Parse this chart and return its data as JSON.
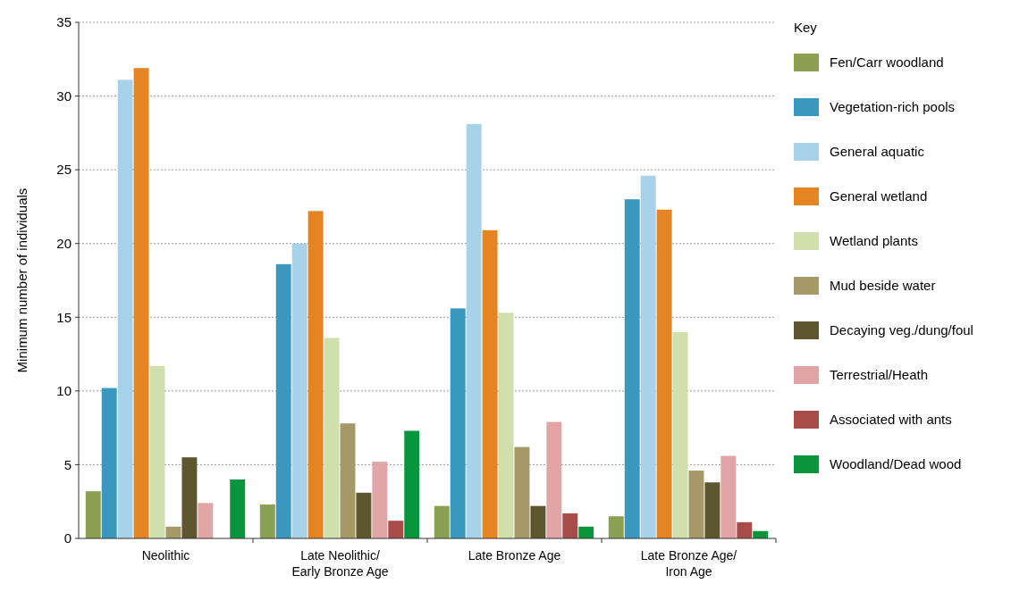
{
  "chart_data": {
    "type": "bar",
    "ylabel": "Minimum number of individuals",
    "legend_title": "Key",
    "legend": "right",
    "categories": [
      "Neolithic",
      "Late Neolithic/\nEarly Bronze Age",
      "Late Bronze Age",
      "Late Bronze Age/\nIron Age"
    ],
    "ylim": [
      0,
      35
    ],
    "yticks": [
      0,
      5,
      10,
      15,
      20,
      25,
      30,
      35
    ],
    "grid": "y",
    "series": [
      {
        "name": "Fen/Carr woodland",
        "color": "#8aa052",
        "values": [
          3.2,
          2.3,
          2.2,
          1.5
        ]
      },
      {
        "name": "Vegetation-rich pools",
        "color": "#3a98bf",
        "values": [
          10.2,
          18.6,
          15.6,
          23.0
        ]
      },
      {
        "name": "General aquatic",
        "color": "#a7d2ea",
        "values": [
          31.1,
          20.0,
          28.1,
          24.6
        ]
      },
      {
        "name": "General wetland",
        "color": "#e48422",
        "values": [
          31.9,
          22.2,
          20.9,
          22.3
        ]
      },
      {
        "name": "Wetland plants",
        "color": "#cfe0ad",
        "values": [
          11.7,
          13.6,
          15.3,
          14.0
        ]
      },
      {
        "name": "Mud beside water",
        "color": "#a59a67",
        "values": [
          0.8,
          7.8,
          6.2,
          4.6
        ]
      },
      {
        "name": "Decaying veg./dung/foul",
        "color": "#5e562f",
        "values": [
          5.5,
          3.1,
          2.2,
          3.8
        ]
      },
      {
        "name": "Terrestrial/Heath",
        "color": "#e2a5a5",
        "values": [
          2.4,
          5.2,
          7.9,
          5.6
        ]
      },
      {
        "name": "Associated with ants",
        "color": "#a84c4a",
        "values": [
          0,
          1.2,
          1.7,
          1.1
        ]
      },
      {
        "name": "Woodland/Dead wood",
        "color": "#0a953c",
        "values": [
          4.0,
          7.3,
          0.8,
          0.5
        ]
      }
    ]
  }
}
